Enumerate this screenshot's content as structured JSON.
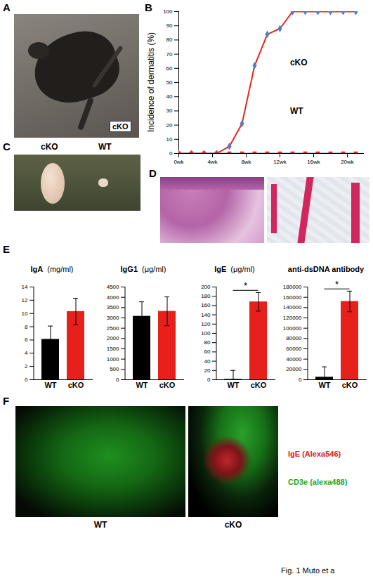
{
  "chart_data": [
    {
      "type": "line",
      "ylabel": "Incidence of dermatitis (%)",
      "x": [
        0,
        1.5,
        3,
        4.5,
        6,
        7.5,
        9,
        10.5,
        12,
        13.5,
        15,
        16.5,
        18,
        19.5,
        21
      ],
      "xlim": [
        0,
        22
      ],
      "xticks": [
        {
          "value": 0,
          "label": "0wk"
        },
        {
          "value": 4,
          "label": "4wk"
        },
        {
          "value": 8,
          "label": "8wk"
        },
        {
          "value": 12,
          "label": "12wk"
        },
        {
          "value": 16,
          "label": "16wk"
        },
        {
          "value": 20,
          "label": "20wk"
        }
      ],
      "ylim": [
        0,
        100
      ],
      "yticks": [
        0,
        10,
        20,
        30,
        40,
        50,
        60,
        70,
        80,
        90,
        100
      ],
      "series": [
        {
          "name": "cKO",
          "color": "#e8261f",
          "marker": "diamond",
          "values": [
            0,
            0,
            0,
            0,
            5,
            21,
            62,
            84,
            88,
            100,
            100,
            100,
            100,
            100,
            100
          ]
        },
        {
          "name": "WT",
          "color": "#4f7fc0",
          "marker": "square",
          "values": [
            0,
            0,
            0,
            0,
            0,
            0,
            0,
            0,
            0,
            0,
            0,
            0,
            0,
            0,
            0
          ]
        }
      ]
    },
    {
      "type": "bar",
      "title": "IgA",
      "subtitle": "(mg/ml)",
      "categories": [
        "WT",
        "cKO"
      ],
      "values": [
        6.1,
        10.3
      ],
      "errors": [
        2.0,
        2.0
      ],
      "colors": [
        "#000000",
        "#e8201c"
      ],
      "ylim": [
        0,
        14
      ],
      "yticks": [
        0,
        2,
        4,
        6,
        8,
        10,
        12,
        14
      ]
    },
    {
      "type": "bar",
      "title": "IgG1",
      "subtitle": "(μg/ml)",
      "categories": [
        "WT",
        "cKO"
      ],
      "values": [
        3080,
        3320
      ],
      "errors": [
        700,
        700
      ],
      "colors": [
        "#000000",
        "#e8201c"
      ],
      "ylim": [
        0,
        4500
      ],
      "yticks": [
        0,
        500,
        1000,
        1500,
        2000,
        2500,
        3000,
        3500,
        4000,
        4500
      ]
    },
    {
      "type": "bar",
      "title": "IgE",
      "subtitle": "(μg/ml)",
      "categories": [
        "WT",
        "cKO"
      ],
      "values": [
        1,
        168
      ],
      "errors": [
        19,
        20
      ],
      "colors": [
        "#000000",
        "#e8201c"
      ],
      "ylim": [
        0,
        200
      ],
      "yticks": [
        0,
        20,
        40,
        60,
        80,
        100,
        120,
        140,
        160,
        180,
        200
      ],
      "annotations": [
        "*"
      ]
    },
    {
      "type": "bar",
      "title": "anti-dsDNA antibody",
      "categories": [
        "WT",
        "cKO"
      ],
      "values": [
        5000,
        152000
      ],
      "errors": [
        20000,
        20000
      ],
      "colors": [
        "#000000",
        "#e8201c"
      ],
      "ylim": [
        0,
        180000
      ],
      "yticks": [
        0,
        20000,
        40000,
        60000,
        80000,
        100000,
        120000,
        140000,
        160000,
        180000
      ],
      "annotations": [
        "*"
      ]
    }
  ],
  "figure": {
    "panel_labels": [
      "A",
      "B",
      "C",
      "D",
      "E",
      "F"
    ],
    "A": {
      "label": "cKO"
    },
    "C": {
      "labels": [
        "cKO",
        "WT"
      ]
    },
    "F": {
      "images": [
        "WT",
        "cKO"
      ],
      "legend": [
        {
          "text": "IgE (Alexa546)",
          "color": "#e02020"
        },
        {
          "text": "CD3e (alexa488)",
          "color": "#1fa81f"
        }
      ]
    },
    "caption": "Fig. 1 Muto et a"
  }
}
